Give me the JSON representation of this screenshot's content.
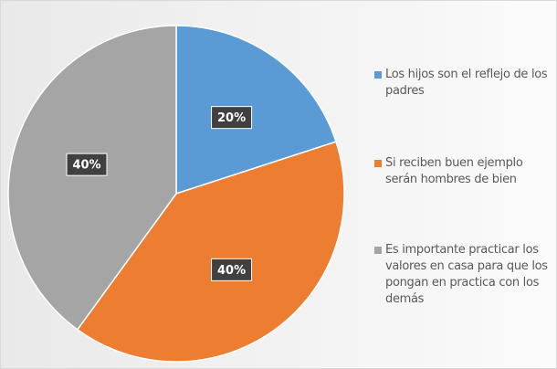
{
  "chart_data": {
    "type": "pie",
    "categories": [
      "Los hijos son el reflejo de los padres",
      "Si reciben buen ejemplo serán hombres de bien",
      "Es importante practicar los valores en casa para que los pongan en practica con los demás"
    ],
    "values": [
      20,
      40,
      40
    ],
    "value_labels": [
      "20%",
      "40%",
      "40%"
    ],
    "colors": [
      "#5b9bd5",
      "#ed7d31",
      "#a5a5a5"
    ],
    "legend": "right"
  }
}
